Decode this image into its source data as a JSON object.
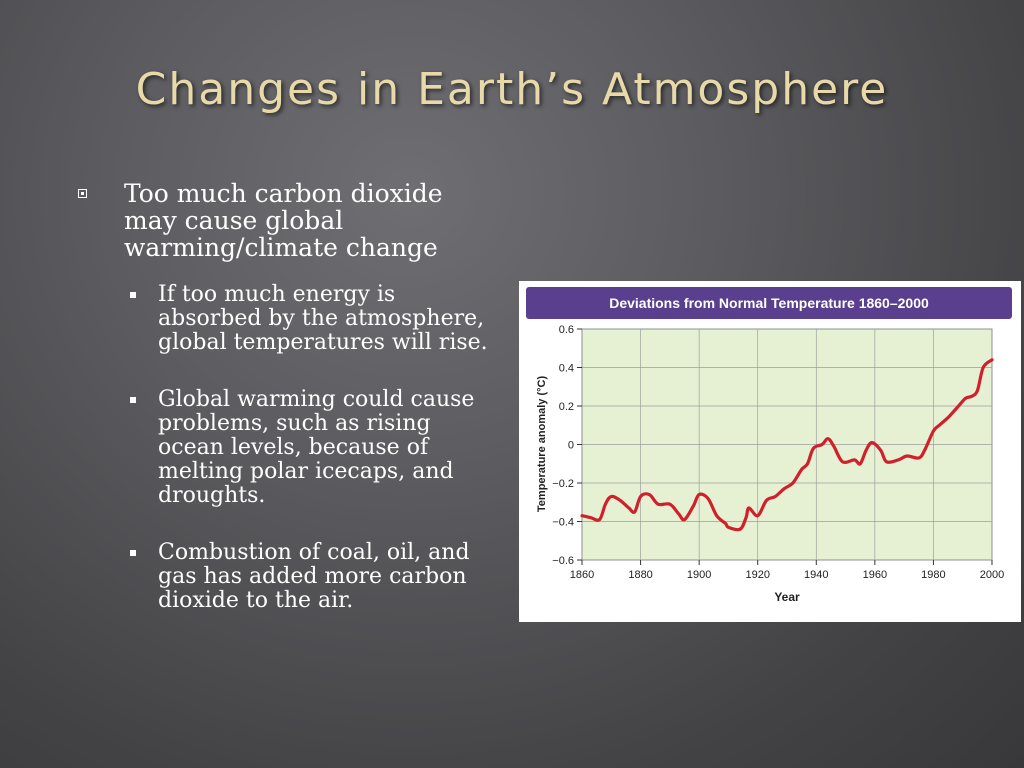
{
  "slide": {
    "title": "Changes in Earth’s Atmosphere"
  },
  "bullets": {
    "main": "Too much carbon dioxide may cause global warming/climate change",
    "sub": [
      "If too much energy is absorbed by the atmosphere, global temperatures will rise.",
      "Global warming could cause problems, such as rising ocean levels, because of melting polar icecaps, and droughts.",
      "Combustion of coal, oil, and gas has added more carbon dioxide to the air."
    ]
  },
  "chart_data": {
    "type": "line",
    "title": "Deviations from Normal Temperature 1860–2000",
    "xlabel": "Year",
    "ylabel": "Temperature anomaly (°C)",
    "xlim": [
      1860,
      2000
    ],
    "ylim": [
      -0.6,
      0.6
    ],
    "xticks": [
      "1860",
      "1880",
      "1900",
      "1920",
      "1940",
      "1960",
      "1980",
      "2000"
    ],
    "yticks": [
      "0.6",
      "0.4",
      "0.2",
      "0",
      "−0.2",
      "−0.4",
      "−0.6"
    ],
    "grid": true,
    "colors": {
      "line": "#d0202c",
      "plot_bg": "#e6f1d3",
      "title_bar": "#5a3f8e",
      "grid": "#9e9e9e"
    },
    "x": [
      1860,
      1863,
      1866,
      1868,
      1870,
      1873,
      1876,
      1878,
      1880,
      1883,
      1886,
      1890,
      1893,
      1895,
      1898,
      1900,
      1903,
      1906,
      1909,
      1910,
      1914,
      1916,
      1917,
      1920,
      1923,
      1926,
      1929,
      1932,
      1935,
      1937,
      1939,
      1942,
      1944,
      1946,
      1949,
      1953,
      1955,
      1957,
      1959,
      1962,
      1964,
      1968,
      1971,
      1975,
      1977,
      1980,
      1982,
      1985,
      1988,
      1991,
      1993,
      1995,
      1997,
      2000
    ],
    "y": [
      -0.37,
      -0.38,
      -0.39,
      -0.31,
      -0.27,
      -0.29,
      -0.33,
      -0.35,
      -0.27,
      -0.26,
      -0.31,
      -0.31,
      -0.36,
      -0.39,
      -0.32,
      -0.26,
      -0.28,
      -0.37,
      -0.41,
      -0.43,
      -0.44,
      -0.38,
      -0.33,
      -0.37,
      -0.29,
      -0.27,
      -0.23,
      -0.2,
      -0.13,
      -0.1,
      -0.02,
      0.0,
      0.03,
      -0.01,
      -0.09,
      -0.08,
      -0.1,
      -0.03,
      0.01,
      -0.03,
      -0.09,
      -0.08,
      -0.06,
      -0.07,
      -0.03,
      0.07,
      0.1,
      0.14,
      0.19,
      0.24,
      0.25,
      0.28,
      0.4,
      0.44
    ]
  }
}
